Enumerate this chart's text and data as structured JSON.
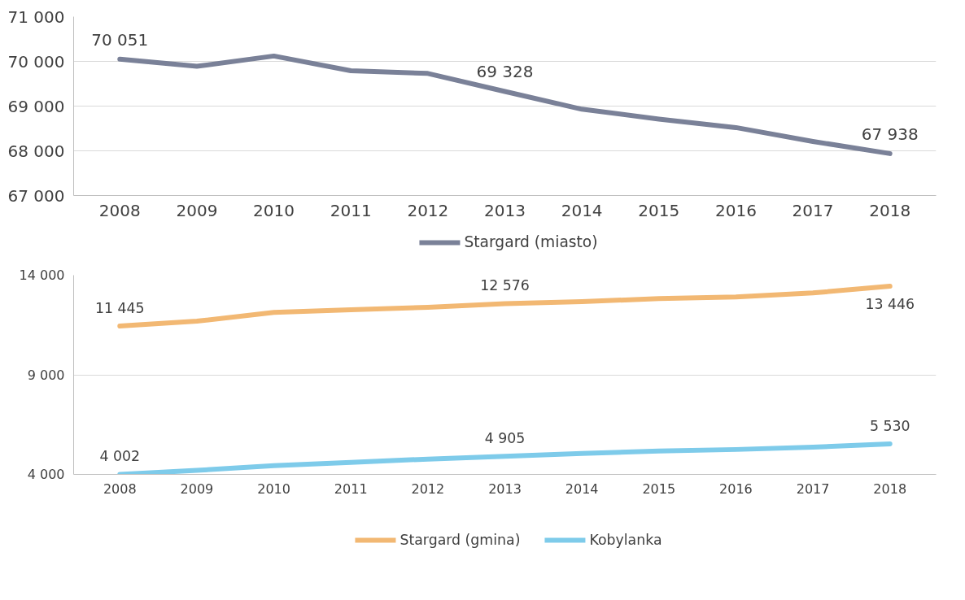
{
  "chart_data": [
    {
      "type": "line",
      "categories": [
        "2008",
        "2009",
        "2010",
        "2011",
        "2012",
        "2013",
        "2014",
        "2015",
        "2016",
        "2017",
        "2018"
      ],
      "series": [
        {
          "name": "Stargard (miasto)",
          "color": "#7a8198",
          "values": [
            70051,
            69890,
            70120,
            69790,
            69730,
            69328,
            68930,
            68710,
            68520,
            68210,
            67938
          ],
          "value_labels": [
            "70 051",
            null,
            null,
            null,
            null,
            "69 328",
            null,
            null,
            null,
            null,
            "67 938"
          ]
        }
      ],
      "ylim": [
        67000,
        71000
      ],
      "yticks": [
        {
          "value": 67000,
          "label": "67 000"
        },
        {
          "value": 68000,
          "label": "68 000"
        },
        {
          "value": 69000,
          "label": "69 000"
        },
        {
          "value": 70000,
          "label": "70 000"
        },
        {
          "value": 71000,
          "label": "71 000"
        }
      ],
      "grid": "y",
      "legend": "bottom",
      "marker": "none",
      "line_style": "solid"
    },
    {
      "type": "line",
      "categories": [
        "2008",
        "2009",
        "2010",
        "2011",
        "2012",
        "2013",
        "2014",
        "2015",
        "2016",
        "2017",
        "2018"
      ],
      "series": [
        {
          "name": "Stargard (gmina)",
          "color": "#f2b873",
          "values": [
            11445,
            11690,
            12130,
            12270,
            12390,
            12576,
            12670,
            12830,
            12910,
            13110,
            13446
          ],
          "value_labels": [
            "11 445",
            null,
            null,
            null,
            null,
            "12 576",
            null,
            null,
            null,
            null,
            "13 446"
          ]
        },
        {
          "name": "Kobylanka",
          "color": "#7ecbea",
          "values": [
            4002,
            4200,
            4440,
            4600,
            4770,
            4905,
            5050,
            5170,
            5250,
            5370,
            5530
          ],
          "value_labels": [
            "4 002",
            null,
            null,
            null,
            null,
            "4 905",
            null,
            null,
            null,
            null,
            "5 530"
          ]
        }
      ],
      "ylim": [
        4000,
        14000
      ],
      "yticks": [
        {
          "value": 4000,
          "label": "4 000"
        },
        {
          "value": 9000,
          "label": "9 000"
        },
        {
          "value": 14000,
          "label": "14 000"
        }
      ],
      "grid": "y",
      "legend": "bottom",
      "marker": "none",
      "line_style": "solid"
    }
  ]
}
